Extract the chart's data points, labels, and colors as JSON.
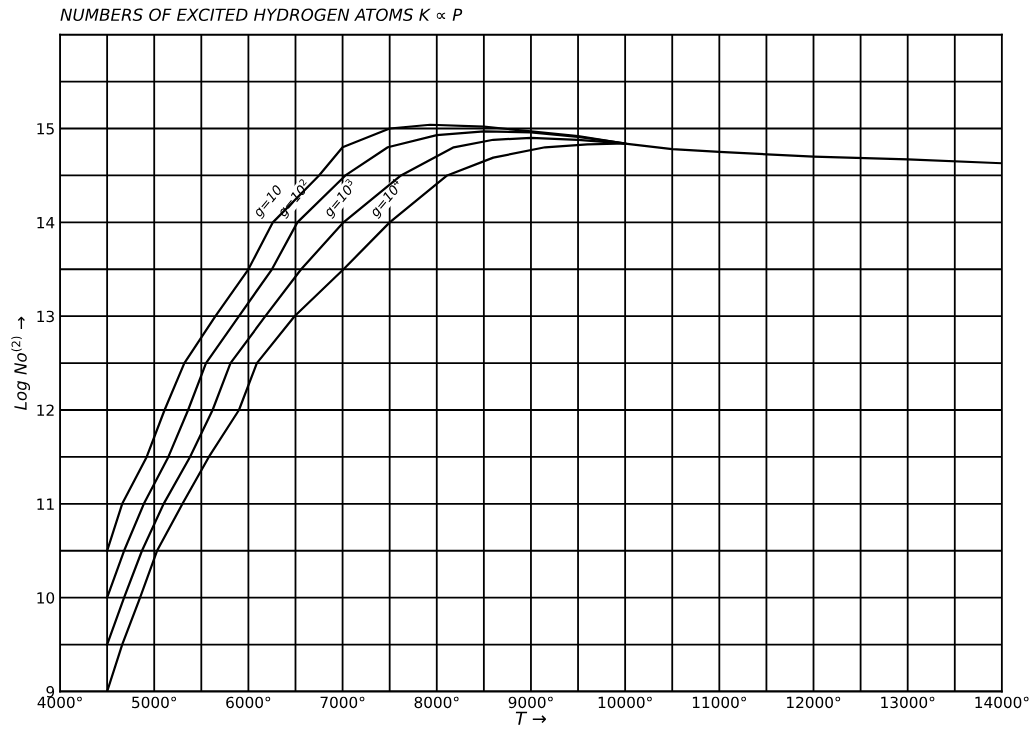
{
  "chart_data": {
    "type": "line",
    "title": "NUMBERS OF EXCITED HYDROGEN ATOMS K ∝ P",
    "xlabel": "T →",
    "ylabel": "Log No$^{(2)}$ →",
    "xlim": [
      4000,
      14000
    ],
    "ylim": [
      9,
      16
    ],
    "xticks": [
      {
        "value": 4000,
        "label": "4000°"
      },
      {
        "value": 4500,
        "label": null
      },
      {
        "value": 5000,
        "label": "5000°"
      },
      {
        "value": 5500,
        "label": null
      },
      {
        "value": 6000,
        "label": "6000°"
      },
      {
        "value": 6500,
        "label": null
      },
      {
        "value": 7000,
        "label": "7000°"
      },
      {
        "value": 7500,
        "label": null
      },
      {
        "value": 8000,
        "label": "8000°"
      },
      {
        "value": 8500,
        "label": null
      },
      {
        "value": 9000,
        "label": "9000°"
      },
      {
        "value": 9500,
        "label": null
      },
      {
        "value": 10000,
        "label": "10000°"
      },
      {
        "value": 10500,
        "label": null
      },
      {
        "value": 11000,
        "label": "11000°"
      },
      {
        "value": 11500,
        "label": null
      },
      {
        "value": 12000,
        "label": "12000°"
      },
      {
        "value": 12500,
        "label": null
      },
      {
        "value": 13000,
        "label": "13000°"
      },
      {
        "value": 13500,
        "label": null
      },
      {
        "value": 14000,
        "label": "14000°"
      }
    ],
    "yticks": [
      9,
      {
        "value": 9.5,
        "label": null
      },
      10,
      {
        "value": 10.5,
        "label": null
      },
      11,
      {
        "value": 11.5,
        "label": null
      },
      12,
      {
        "value": 12.5,
        "label": null
      },
      13,
      {
        "value": 13.5,
        "label": null
      },
      14,
      {
        "value": 14.5,
        "label": null
      },
      15,
      {
        "value": 15.5,
        "label": null
      },
      {
        "value": 16,
        "label": null
      }
    ],
    "grid": true,
    "legend": false,
    "marker": "none",
    "line_style": "solid",
    "series": [
      {
        "name": "g=10",
        "color": "#000000",
        "x": [
          4500,
          4660,
          4920,
          5110,
          5320,
          5650,
          6000,
          6260,
          6750,
          7000,
          7500,
          7930,
          8500,
          9000,
          9500,
          10000,
          10500,
          11000,
          12000,
          13000,
          14000
        ],
        "values": [
          10.5,
          11,
          11.5,
          12,
          12.5,
          13,
          13.5,
          14,
          14.5,
          14.8,
          15,
          15.04,
          15.02,
          14.97,
          14.92,
          14.84,
          14.78,
          14.75,
          14.7,
          14.67,
          14.63
        ]
      },
      {
        "name": "g=10$^{2}$",
        "color": "#000000",
        "x": [
          4500,
          4680,
          4890,
          5150,
          5360,
          5550,
          5900,
          6250,
          6520,
          7030,
          7480,
          8000,
          8500,
          9000,
          9500,
          10000
        ],
        "values": [
          10,
          10.5,
          11,
          11.5,
          12,
          12.5,
          13,
          13.5,
          14,
          14.5,
          14.8,
          14.93,
          14.97,
          14.96,
          14.91,
          14.84
        ]
      },
      {
        "name": "g=10$^{3}$",
        "color": "#000000",
        "x": [
          4500,
          4680,
          4870,
          5100,
          5380,
          5620,
          5810,
          6180,
          6560,
          7010,
          7620,
          8180,
          8600,
          9000,
          9500,
          10000
        ],
        "values": [
          9.5,
          10,
          10.5,
          11,
          11.5,
          12,
          12.5,
          13,
          13.5,
          14,
          14.5,
          14.8,
          14.88,
          14.9,
          14.88,
          14.84
        ]
      },
      {
        "name": "g=10$^{4}$",
        "color": "#000000",
        "x": [
          4500,
          4660,
          4850,
          5030,
          5300,
          5580,
          5900,
          6090,
          6490,
          7010,
          7500,
          8110,
          8600,
          9150,
          9600,
          10000
        ],
        "values": [
          9,
          9.5,
          10,
          10.5,
          11,
          11.5,
          12,
          12.5,
          13,
          13.5,
          14,
          14.5,
          14.69,
          14.8,
          14.83,
          14.84
        ]
      }
    ]
  }
}
